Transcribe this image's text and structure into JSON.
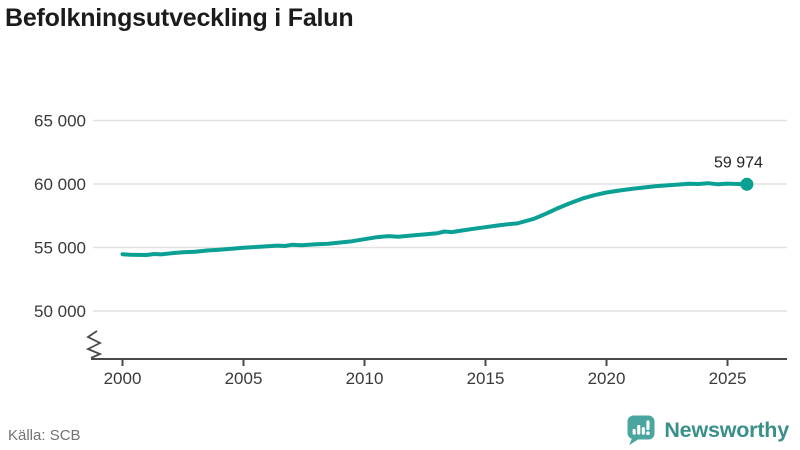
{
  "header": {
    "title": "Befolkningsutveckling i Falun"
  },
  "footer": {
    "source": "Källa: SCB",
    "brand": "Newsworthy",
    "brand_icon": "bar-chart-speech-bubble"
  },
  "colors": {
    "accent": "#0ba094",
    "grid": "#e2e2e2",
    "axis": "#4a4a4a",
    "tick_label": "#3a3a3a",
    "value_label": "#222222",
    "title": "#1b1b1b",
    "source": "#737373",
    "brand": "#39908a",
    "brand_icon_fill": "#4aa5a0"
  },
  "chart_data": {
    "type": "line",
    "title": "Befolkningsutveckling i Falun",
    "xlabel": "",
    "ylabel": "",
    "grid": "horizontal",
    "legend": "none",
    "axis_break": true,
    "xlim": [
      1998.8,
      2027.5
    ],
    "ylim": [
      50000,
      65000
    ],
    "x_ticks": {
      "values": [
        2000,
        2005,
        2010,
        2015,
        2020,
        2025
      ],
      "labels": [
        "2000",
        "2005",
        "2010",
        "2015",
        "2020",
        "2025"
      ]
    },
    "y_ticks": {
      "values": [
        50000,
        55000,
        60000,
        65000
      ],
      "labels": [
        "50 000",
        "55 000",
        "60 000",
        "65 000"
      ]
    },
    "end_label": {
      "text": "59 974",
      "value": 59974
    },
    "series": [
      {
        "name": "Befolkning i Falun",
        "color": "#0ba094",
        "points": [
          [
            2000,
            54470
          ],
          [
            2000.3,
            54430
          ],
          [
            2000.6,
            54420
          ],
          [
            2001,
            54410
          ],
          [
            2001.3,
            54490
          ],
          [
            2001.6,
            54460
          ],
          [
            2002,
            54540
          ],
          [
            2002.5,
            54620
          ],
          [
            2003,
            54670
          ],
          [
            2003.5,
            54760
          ],
          [
            2004,
            54830
          ],
          [
            2004.5,
            54900
          ],
          [
            2005,
            54980
          ],
          [
            2005.5,
            55040
          ],
          [
            2006,
            55100
          ],
          [
            2006.4,
            55150
          ],
          [
            2006.7,
            55120
          ],
          [
            2007,
            55210
          ],
          [
            2007.4,
            55180
          ],
          [
            2008,
            55260
          ],
          [
            2008.5,
            55300
          ],
          [
            2009,
            55390
          ],
          [
            2009.5,
            55500
          ],
          [
            2010,
            55650
          ],
          [
            2010.5,
            55810
          ],
          [
            2011,
            55900
          ],
          [
            2011.4,
            55850
          ],
          [
            2012,
            55950
          ],
          [
            2012.5,
            56030
          ],
          [
            2013,
            56120
          ],
          [
            2013.3,
            56260
          ],
          [
            2013.6,
            56210
          ],
          [
            2014,
            56330
          ],
          [
            2014.5,
            56470
          ],
          [
            2015,
            56600
          ],
          [
            2015.5,
            56730
          ],
          [
            2016,
            56850
          ],
          [
            2016.3,
            56890
          ],
          [
            2016.6,
            57050
          ],
          [
            2017,
            57260
          ],
          [
            2017.5,
            57660
          ],
          [
            2018,
            58100
          ],
          [
            2018.5,
            58500
          ],
          [
            2019,
            58850
          ],
          [
            2019.5,
            59120
          ],
          [
            2020,
            59330
          ],
          [
            2020.5,
            59480
          ],
          [
            2021,
            59610
          ],
          [
            2021.5,
            59720
          ],
          [
            2022,
            59820
          ],
          [
            2022.5,
            59890
          ],
          [
            2023,
            59960
          ],
          [
            2023.4,
            60020
          ],
          [
            2023.8,
            60000
          ],
          [
            2024.2,
            60060
          ],
          [
            2024.6,
            59980
          ],
          [
            2025,
            60030
          ],
          [
            2025.4,
            60000
          ],
          [
            2025.8,
            59974
          ]
        ]
      }
    ]
  }
}
